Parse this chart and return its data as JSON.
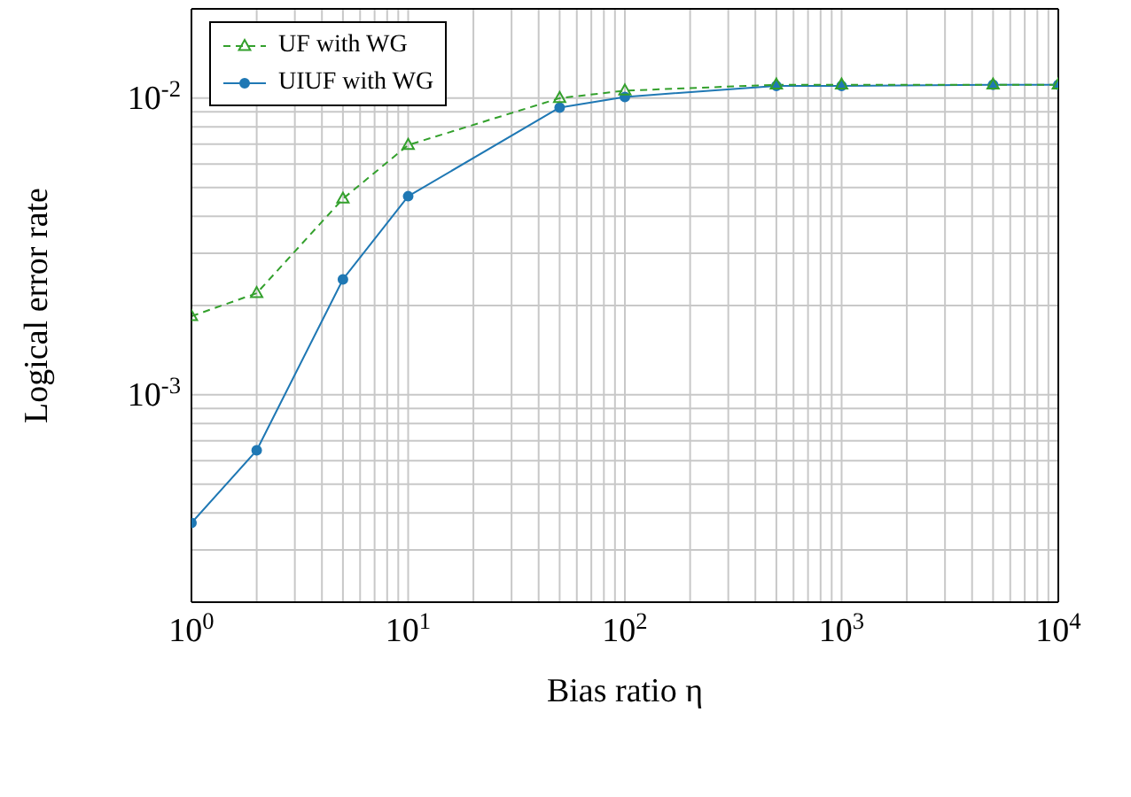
{
  "chart_data": {
    "type": "line",
    "xlabel": "Bias ratio η",
    "ylabel": "Logical error rate",
    "log": "xy",
    "grid": true,
    "legend": "top left",
    "x": [
      1,
      2,
      5,
      10,
      50,
      100,
      500,
      1000,
      5000,
      10000
    ],
    "xlim": [
      1,
      10000
    ],
    "ylim": [
      0.0002,
      0.02
    ],
    "xticks": [
      {
        "value": 1,
        "label": "10$^{0}$"
      },
      {
        "value": 2,
        "label": null
      },
      {
        "value": 3,
        "label": null
      },
      {
        "value": 4,
        "label": null
      },
      {
        "value": 5,
        "label": null
      },
      {
        "value": 6,
        "label": null
      },
      {
        "value": 7,
        "label": null
      },
      {
        "value": 8,
        "label": null
      },
      {
        "value": 9,
        "label": null
      },
      {
        "value": 10,
        "label": "10$^{1}$"
      },
      {
        "value": 20,
        "label": null
      },
      {
        "value": 30,
        "label": null
      },
      {
        "value": 40,
        "label": null
      },
      {
        "value": 50,
        "label": null
      },
      {
        "value": 60,
        "label": null
      },
      {
        "value": 70,
        "label": null
      },
      {
        "value": 80,
        "label": null
      },
      {
        "value": 90,
        "label": null
      },
      {
        "value": 100,
        "label": "10$^{2}$"
      },
      {
        "value": 200,
        "label": null
      },
      {
        "value": 300,
        "label": null
      },
      {
        "value": 400,
        "label": null
      },
      {
        "value": 500,
        "label": null
      },
      {
        "value": 600,
        "label": null
      },
      {
        "value": 700,
        "label": null
      },
      {
        "value": 800,
        "label": null
      },
      {
        "value": 900,
        "label": null
      },
      {
        "value": 1000,
        "label": "10$^{3}$"
      },
      {
        "value": 2000,
        "label": null
      },
      {
        "value": 3000,
        "label": null
      },
      {
        "value": 4000,
        "label": null
      },
      {
        "value": 5000,
        "label": null
      },
      {
        "value": 6000,
        "label": null
      },
      {
        "value": 7000,
        "label": null
      },
      {
        "value": 8000,
        "label": null
      },
      {
        "value": 9000,
        "label": null
      },
      {
        "value": 10000,
        "label": "10$^{4}$"
      }
    ],
    "yticks": [
      {
        "value": 0.0002,
        "label": null
      },
      {
        "value": 0.0003,
        "label": null
      },
      {
        "value": 0.0004,
        "label": null
      },
      {
        "value": 0.0005,
        "label": null
      },
      {
        "value": 0.0006,
        "label": null
      },
      {
        "value": 0.0007,
        "label": null
      },
      {
        "value": 0.0008,
        "label": null
      },
      {
        "value": 0.0009,
        "label": null
      },
      {
        "value": 0.001,
        "label": "10$^{-3}$"
      },
      {
        "value": 0.002,
        "label": null
      },
      {
        "value": 0.003,
        "label": null
      },
      {
        "value": 0.004,
        "label": null
      },
      {
        "value": 0.005,
        "label": null
      },
      {
        "value": 0.006,
        "label": null
      },
      {
        "value": 0.007,
        "label": null
      },
      {
        "value": 0.008,
        "label": null
      },
      {
        "value": 0.009,
        "label": null
      },
      {
        "value": 0.01,
        "label": "10$^{-2}$"
      },
      {
        "value": 0.02,
        "label": null
      }
    ],
    "series": [
      {
        "name": "UF with WG",
        "color": "#33a02c",
        "marker": "triangle",
        "line_style": "dashed",
        "values": [
          0.00184,
          0.0022,
          0.00458,
          0.00695,
          0.01,
          0.0106,
          0.0111,
          0.0111,
          0.0111,
          0.0111
        ]
      },
      {
        "name": "UIUF with WG",
        "color": "#1f78b4",
        "marker": "circle",
        "line_style": "solid",
        "values": [
          0.00037,
          0.00065,
          0.00245,
          0.00467,
          0.0093,
          0.0101,
          0.011,
          0.011,
          0.0111,
          0.0111
        ]
      }
    ]
  }
}
